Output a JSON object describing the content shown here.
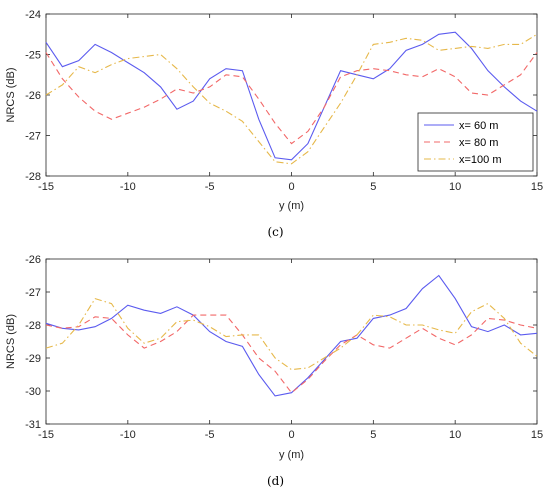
{
  "chart_data": [
    {
      "type": "line",
      "caption": "(c)",
      "xlabel": "y (m)",
      "ylabel": "NRCS (dB)",
      "xlim": [
        -15,
        15
      ],
      "ylim": [
        -28,
        -24
      ],
      "xticks": [
        "-15",
        "-10",
        "-5",
        "0",
        "5",
        "10",
        "15"
      ],
      "yticks": [
        "-24",
        "-25",
        "-26",
        "-27",
        "-28"
      ],
      "legend_position": "bottom-right",
      "x": [
        -15,
        -14,
        -13,
        -12,
        -11,
        -10,
        -9,
        -8,
        -7,
        -6,
        -5,
        -4,
        -3,
        -2,
        -1,
        0,
        1,
        2,
        3,
        4,
        5,
        6,
        7,
        8,
        9,
        10,
        11,
        12,
        13,
        14,
        15
      ],
      "series": [
        {
          "name": "x= 60 m",
          "color": "#5b5bef",
          "dash": "solid",
          "values": [
            -24.7,
            -25.3,
            -25.15,
            -24.75,
            -24.95,
            -25.2,
            -25.45,
            -25.8,
            -26.35,
            -26.15,
            -25.6,
            -25.35,
            -25.4,
            -26.6,
            -27.55,
            -27.6,
            -27.2,
            -26.3,
            -25.4,
            -25.5,
            -25.6,
            -25.35,
            -24.9,
            -24.75,
            -24.5,
            -24.45,
            -24.85,
            -25.4,
            -25.8,
            -26.15,
            -26.4
          ]
        },
        {
          "name": "x= 80 m",
          "color": "#f26868",
          "dash": "dashed",
          "values": [
            -24.95,
            -25.6,
            -26.05,
            -26.4,
            -26.6,
            -26.45,
            -26.3,
            -26.1,
            -25.85,
            -25.95,
            -25.8,
            -25.5,
            -25.55,
            -26.1,
            -26.7,
            -27.2,
            -26.9,
            -26.3,
            -25.55,
            -25.4,
            -25.35,
            -25.4,
            -25.5,
            -25.55,
            -25.35,
            -25.55,
            -25.95,
            -26.0,
            -25.75,
            -25.5,
            -24.95
          ]
        },
        {
          "name": "x=100 m",
          "color": "#e6b84a",
          "dash": "dashdot",
          "values": [
            -26.0,
            -25.75,
            -25.3,
            -25.45,
            -25.25,
            -25.1,
            -25.05,
            -25.0,
            -25.35,
            -25.8,
            -26.2,
            -26.4,
            -26.65,
            -27.15,
            -27.65,
            -27.7,
            -27.4,
            -26.8,
            -26.2,
            -25.5,
            -24.75,
            -24.7,
            -24.6,
            -24.65,
            -24.9,
            -24.85,
            -24.8,
            -24.85,
            -24.75,
            -24.75,
            -24.5
          ]
        }
      ]
    },
    {
      "type": "line",
      "caption": "(d)",
      "xlabel": "y (m)",
      "ylabel": "NRCS (dB)",
      "xlim": [
        -15,
        15
      ],
      "ylim": [
        -31,
        -26
      ],
      "xticks": [
        "-15",
        "-10",
        "-5",
        "0",
        "5",
        "10",
        "15"
      ],
      "yticks": [
        "-26",
        "-27",
        "-28",
        "-29",
        "-30",
        "-31"
      ],
      "x": [
        -15,
        -14,
        -13,
        -12,
        -11,
        -10,
        -9,
        -8,
        -7,
        -6,
        -5,
        -4,
        -3,
        -2,
        -1,
        0,
        1,
        2,
        3,
        4,
        5,
        6,
        7,
        8,
        9,
        10,
        11,
        12,
        13,
        14,
        15
      ],
      "series": [
        {
          "name": "x= 60 m",
          "color": "#5b5bef",
          "dash": "solid",
          "values": [
            -27.95,
            -28.1,
            -28.15,
            -28.05,
            -27.8,
            -27.4,
            -27.55,
            -27.65,
            -27.45,
            -27.7,
            -28.2,
            -28.5,
            -28.65,
            -29.5,
            -30.15,
            -30.05,
            -29.6,
            -29.05,
            -28.5,
            -28.4,
            -27.8,
            -27.7,
            -27.5,
            -26.9,
            -26.5,
            -27.2,
            -28.05,
            -28.2,
            -28.0,
            -28.3,
            -28.25
          ]
        },
        {
          "name": "x= 80 m",
          "color": "#f26868",
          "dash": "dashed",
          "values": [
            -28.0,
            -28.1,
            -28.05,
            -27.75,
            -27.8,
            -28.3,
            -28.7,
            -28.5,
            -28.2,
            -27.7,
            -27.7,
            -27.7,
            -28.3,
            -29.0,
            -29.4,
            -30.05,
            -29.65,
            -29.1,
            -28.6,
            -28.3,
            -28.6,
            -28.7,
            -28.4,
            -28.1,
            -28.4,
            -28.6,
            -28.3,
            -27.8,
            -27.85,
            -28.0,
            -28.1
          ]
        },
        {
          "name": "x=100 m",
          "color": "#e6b84a",
          "dash": "dashdot",
          "values": [
            -28.7,
            -28.55,
            -28.0,
            -27.2,
            -27.35,
            -28.1,
            -28.55,
            -28.4,
            -27.9,
            -27.85,
            -28.05,
            -28.35,
            -28.3,
            -28.3,
            -29.0,
            -29.35,
            -29.3,
            -29.0,
            -28.7,
            -28.3,
            -27.7,
            -27.75,
            -28.0,
            -28.0,
            -28.15,
            -28.25,
            -27.6,
            -27.35,
            -27.8,
            -28.55,
            -28.95
          ]
        }
      ]
    }
  ]
}
